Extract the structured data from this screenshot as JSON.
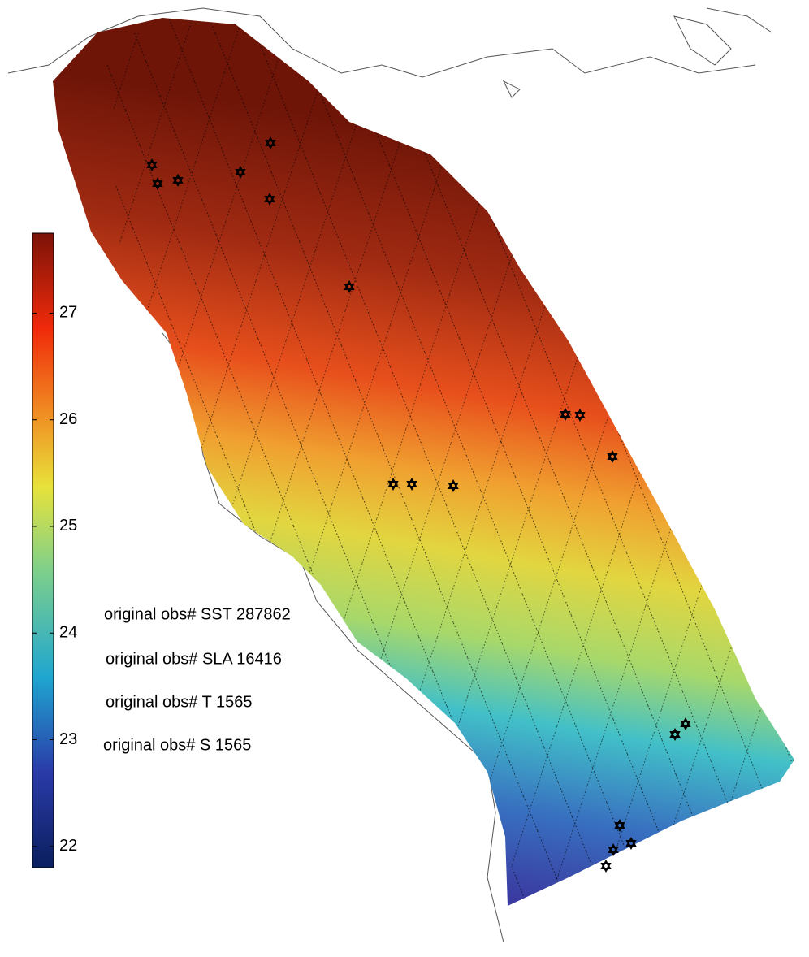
{
  "colorbar": {
    "lim": [
      21.8,
      27.75
    ],
    "ticks": [
      22,
      23,
      24,
      25,
      26,
      27
    ]
  },
  "annotations": [
    "original obs# SST 287862",
    "original obs# SLA 16416",
    "original obs# T 1565",
    "original obs# S 1565"
  ]
}
